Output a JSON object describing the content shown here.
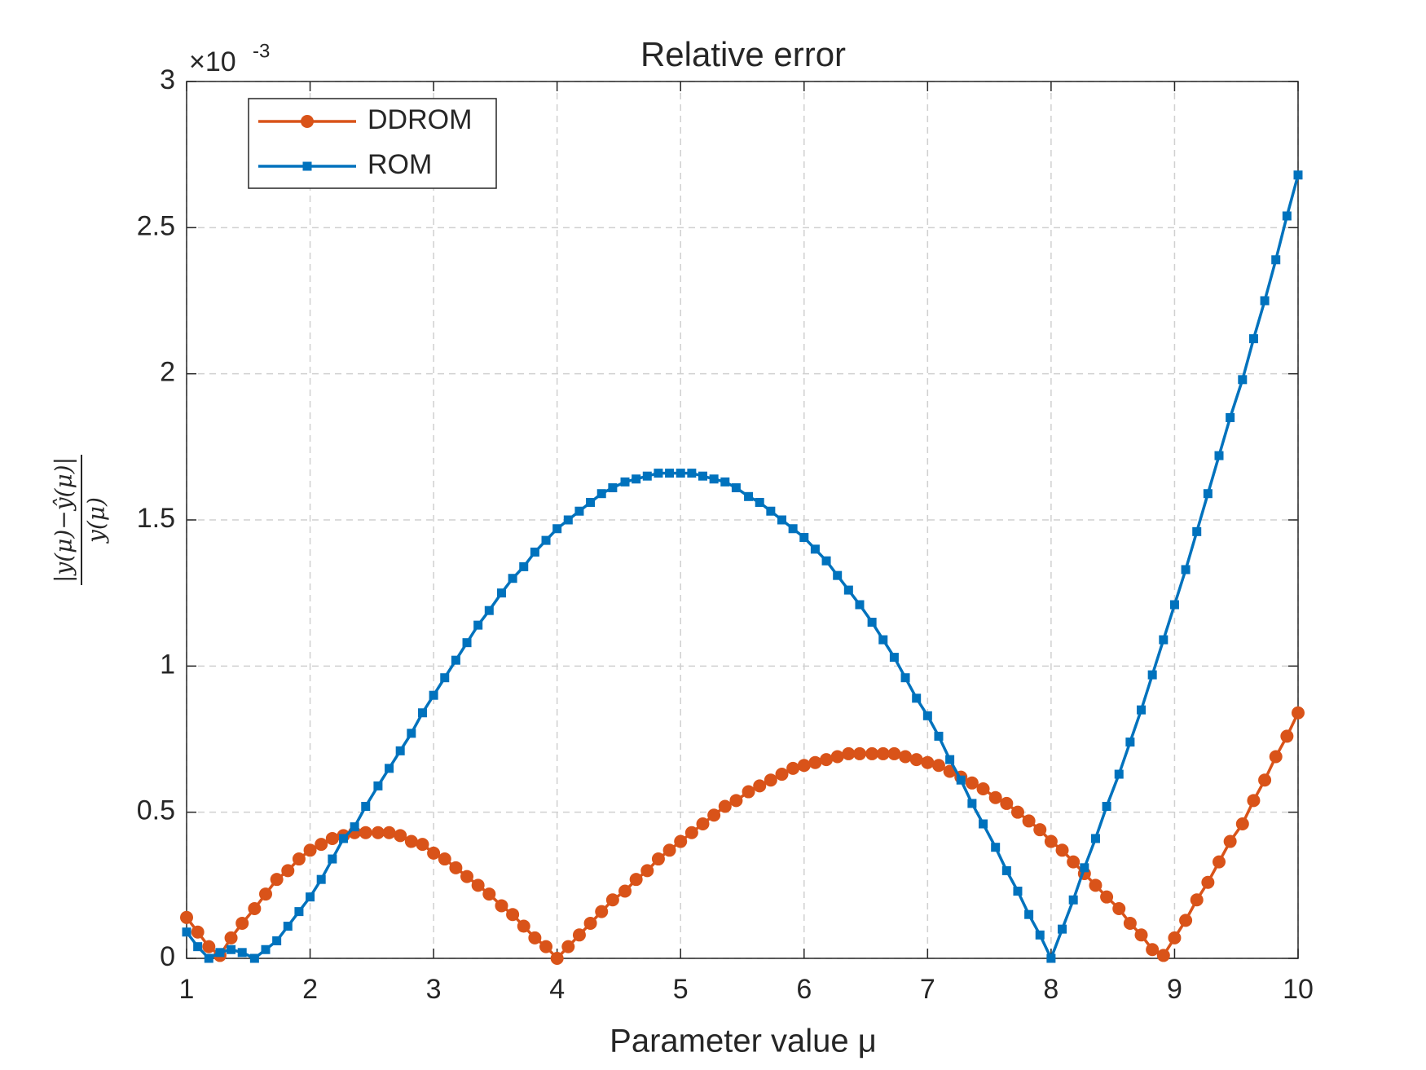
{
  "chart_data": {
    "type": "line",
    "title": "Relative error",
    "x_label": "Parameter value μ",
    "y_label_numerator": "|y(μ)−ŷ(μ)|",
    "y_label_denominator": "y(μ)",
    "y_multiplier": "×10",
    "y_multiplier_exponent": "-3",
    "x": [
      1,
      1.09,
      1.18,
      1.27,
      1.36,
      1.45,
      1.55,
      1.64,
      1.73,
      1.82,
      1.91,
      2,
      2.09,
      2.18,
      2.27,
      2.36,
      2.45,
      2.55,
      2.64,
      2.73,
      2.82,
      2.91,
      3,
      3.09,
      3.18,
      3.27,
      3.36,
      3.45,
      3.55,
      3.64,
      3.73,
      3.82,
      3.91,
      4,
      4.09,
      4.18,
      4.27,
      4.36,
      4.45,
      4.55,
      4.64,
      4.73,
      4.82,
      4.91,
      5,
      5.09,
      5.18,
      5.27,
      5.36,
      5.45,
      5.55,
      5.64,
      5.73,
      5.82,
      5.91,
      6,
      6.09,
      6.18,
      6.27,
      6.36,
      6.45,
      6.55,
      6.64,
      6.73,
      6.82,
      6.91,
      7,
      7.09,
      7.18,
      7.27,
      7.36,
      7.45,
      7.55,
      7.64,
      7.73,
      7.82,
      7.91,
      8,
      8.09,
      8.18,
      8.27,
      8.36,
      8.45,
      8.55,
      8.64,
      8.73,
      8.82,
      8.91,
      9,
      9.09,
      9.18,
      9.27,
      9.36,
      9.45,
      9.55,
      9.64,
      9.73,
      9.82,
      9.91,
      10
    ],
    "series": [
      {
        "name": "DDROM",
        "color": "#D95319",
        "marker": "circle",
        "values": [
          0.14,
          0.09,
          0.04,
          0.01,
          0.07,
          0.12,
          0.17,
          0.22,
          0.27,
          0.3,
          0.34,
          0.37,
          0.39,
          0.41,
          0.42,
          0.43,
          0.43,
          0.43,
          0.43,
          0.42,
          0.4,
          0.39,
          0.36,
          0.34,
          0.31,
          0.28,
          0.25,
          0.22,
          0.18,
          0.15,
          0.11,
          0.07,
          0.04,
          0.0,
          0.04,
          0.08,
          0.12,
          0.16,
          0.2,
          0.23,
          0.27,
          0.3,
          0.34,
          0.37,
          0.4,
          0.43,
          0.46,
          0.49,
          0.52,
          0.54,
          0.57,
          0.59,
          0.61,
          0.63,
          0.65,
          0.66,
          0.67,
          0.68,
          0.69,
          0.7,
          0.7,
          0.7,
          0.7,
          0.7,
          0.69,
          0.68,
          0.67,
          0.66,
          0.64,
          0.62,
          0.6,
          0.58,
          0.55,
          0.53,
          0.5,
          0.47,
          0.44,
          0.4,
          0.37,
          0.33,
          0.29,
          0.25,
          0.21,
          0.17,
          0.12,
          0.08,
          0.03,
          0.01,
          0.07,
          0.13,
          0.2,
          0.26,
          0.33,
          0.4,
          0.46,
          0.54,
          0.61,
          0.69,
          0.76,
          0.84
        ]
      },
      {
        "name": "ROM",
        "color": "#0072BD",
        "marker": "square",
        "values": [
          0.09,
          0.04,
          0.0,
          0.02,
          0.03,
          0.02,
          0.0,
          0.03,
          0.06,
          0.11,
          0.16,
          0.21,
          0.27,
          0.34,
          0.41,
          0.45,
          0.52,
          0.59,
          0.65,
          0.71,
          0.77,
          0.84,
          0.9,
          0.96,
          1.02,
          1.08,
          1.14,
          1.19,
          1.25,
          1.3,
          1.34,
          1.39,
          1.43,
          1.47,
          1.5,
          1.53,
          1.56,
          1.59,
          1.61,
          1.63,
          1.64,
          1.65,
          1.66,
          1.66,
          1.66,
          1.66,
          1.65,
          1.64,
          1.63,
          1.61,
          1.58,
          1.56,
          1.53,
          1.5,
          1.47,
          1.44,
          1.4,
          1.36,
          1.31,
          1.26,
          1.21,
          1.15,
          1.09,
          1.03,
          0.96,
          0.89,
          0.83,
          0.76,
          0.68,
          0.61,
          0.53,
          0.46,
          0.38,
          0.3,
          0.23,
          0.15,
          0.08,
          0.0,
          0.1,
          0.2,
          0.31,
          0.41,
          0.52,
          0.63,
          0.74,
          0.85,
          0.97,
          1.09,
          1.21,
          1.33,
          1.46,
          1.59,
          1.72,
          1.85,
          1.98,
          2.12,
          2.25,
          2.39,
          2.54,
          2.68
        ]
      }
    ],
    "xlim": [
      1,
      10
    ],
    "xticks": [
      1,
      2,
      3,
      4,
      5,
      6,
      7,
      8,
      9,
      10
    ],
    "ylim": [
      0,
      3
    ],
    "yticks": [
      0,
      0.5,
      1,
      1.5,
      2,
      2.5,
      3
    ],
    "grid": true,
    "legend": "upper left"
  }
}
